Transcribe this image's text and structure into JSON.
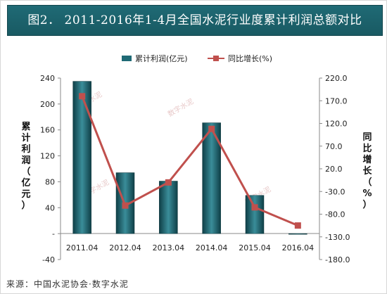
{
  "title": "图2． 2011-2016年1-4月全国水泥行业度累计利润总额对比",
  "source": "来源：中国水泥协会·数字水泥",
  "watermark": "数字水泥",
  "colors": {
    "bar": "#1f6a75",
    "line": "#c0504d",
    "title_bg": "#1f6a75"
  },
  "chart_data": {
    "type": "bar",
    "categories": [
      "2011.04",
      "2012.04",
      "2013.04",
      "2014.04",
      "2015.04",
      "2016.04"
    ],
    "series": [
      {
        "name": "累计利润(亿元)",
        "type": "bar",
        "axis": "left",
        "values": [
          235,
          94,
          81,
          171,
          59,
          -1
        ]
      },
      {
        "name": "同比增长(%)",
        "type": "line",
        "axis": "right",
        "values": [
          180,
          -61,
          -10,
          108,
          -65,
          -105
        ]
      }
    ],
    "y_left": {
      "label": "累计利润（亿元）",
      "ylim": [
        -40,
        240
      ],
      "ticks": [
        -40,
        "-",
        40,
        80,
        120,
        160,
        200,
        240
      ],
      "tick_labels": [
        "-40",
        "-",
        "40",
        "80",
        "120",
        "160",
        "200",
        "240"
      ]
    },
    "y_right": {
      "label": "同比增长（%）",
      "ylim": [
        -180,
        220
      ],
      "tick_labels": [
        "-180.0",
        "-130.0",
        "-80.0",
        "-30.0",
        "20.0",
        "70.0",
        "120.0",
        "170.0",
        "220.0"
      ]
    },
    "legend_placement": "top-center",
    "grid": false
  }
}
